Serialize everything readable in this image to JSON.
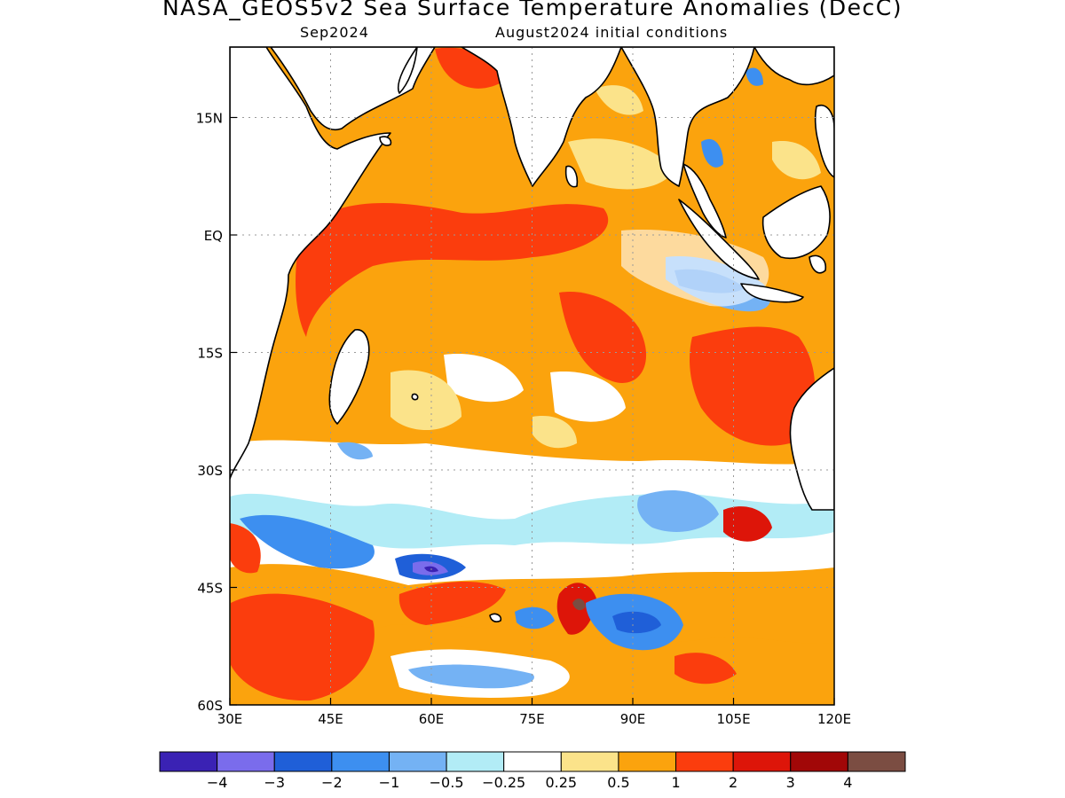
{
  "title": "NASA_GEOS5v2 Sea Surface Temperature Anomalies (DecC)",
  "subtitle_left": "Sep2024",
  "subtitle_right": "August2024 initial conditions",
  "map": {
    "lon_range": [
      30,
      120
    ],
    "lat_range": [
      -60,
      24
    ],
    "lon_ticks": [
      "30E",
      "45E",
      "60E",
      "75E",
      "90E",
      "105E",
      "120E"
    ],
    "lat_ticks": [
      "15N",
      "EQ",
      "15S",
      "30S",
      "45S",
      "60S"
    ]
  },
  "colorbar": {
    "colors": [
      "#3a22b4",
      "#7a6cec",
      "#1f5fd8",
      "#3d8ff0",
      "#74b2f4",
      "#b2ecf6",
      "#ffffff",
      "#fbe38a",
      "#fba30d",
      "#fb3d0d",
      "#dd1509",
      "#a10707",
      "#7b4d42"
    ],
    "labels": [
      "−4",
      "−3",
      "−2",
      "−1",
      "−0.5",
      "−0.25",
      "0.25",
      "0.5",
      "1",
      "2",
      "3",
      "4"
    ]
  },
  "legend": {
    "anomaly_colors": {
      "land": "#ffffff",
      "strong_warm": "#fb3d0d",
      "warm": "#fba30d",
      "weak_warm": "#fbe38a",
      "cool": "#b2ecf6",
      "cold": "#3d8ff0"
    }
  }
}
